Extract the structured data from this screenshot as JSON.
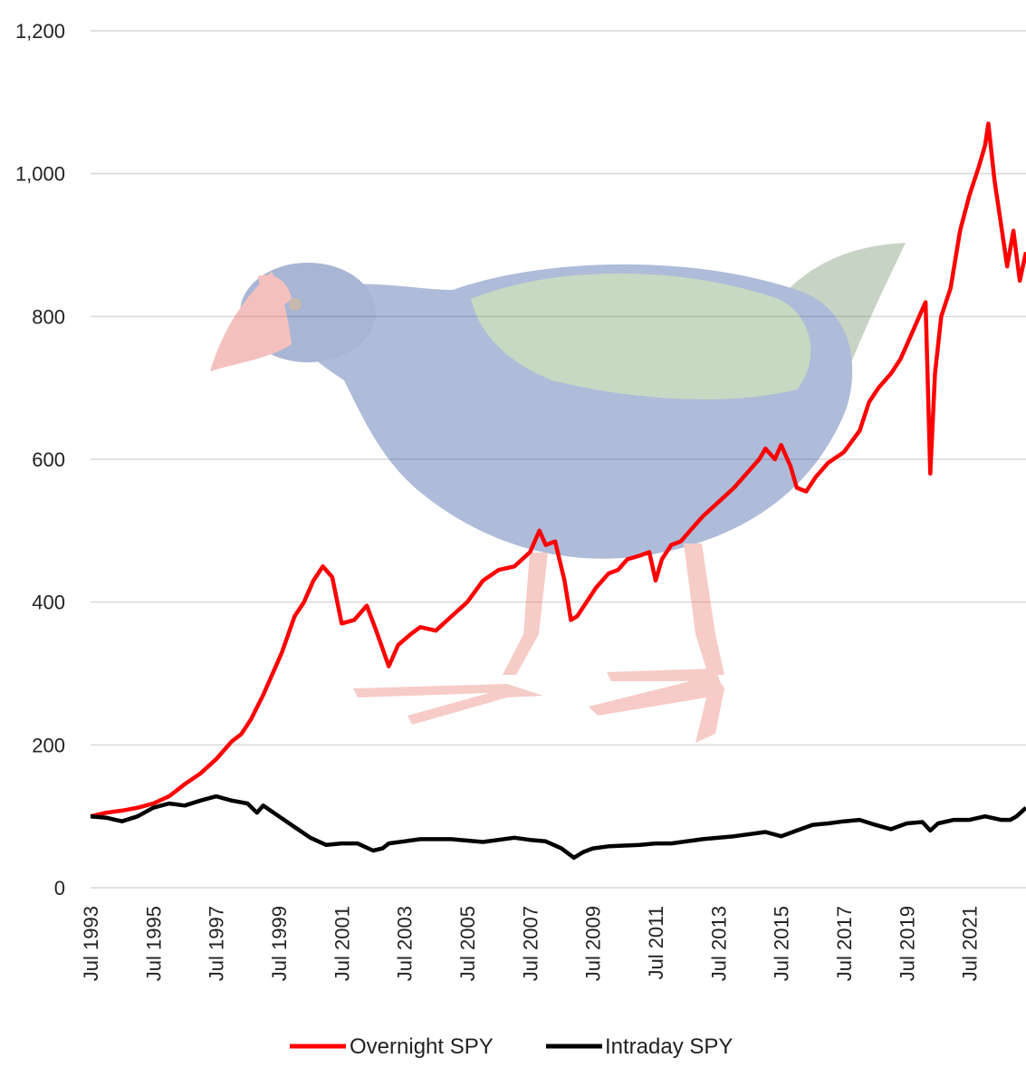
{
  "chart_data": {
    "type": "line",
    "title": "",
    "xlabel": "",
    "ylabel": "",
    "xlim": [
      1993.5,
      2023.3
    ],
    "ylim": [
      0,
      1200
    ],
    "grid": true,
    "legend_position": "bottom",
    "y_ticks": [
      "0",
      "200",
      "400",
      "600",
      "800",
      "1,000",
      "1,200"
    ],
    "x_ticks": [
      "Jul 1993",
      "Jul 1995",
      "Jul 1997",
      "Jul 1999",
      "Jul 2001",
      "Jul 2003",
      "Jul 2005",
      "Jul 2007",
      "Jul 2009",
      "Jul 2011",
      "Jul 2013",
      "Jul 2015",
      "Jul 2017",
      "Jul 2019",
      "Jul 2021"
    ],
    "x_tick_years": [
      1993.5,
      1995.5,
      1997.5,
      1999.5,
      2001.5,
      2003.5,
      2005.5,
      2007.5,
      2009.5,
      2011.5,
      2013.5,
      2015.5,
      2017.5,
      2019.5,
      2021.5
    ],
    "background_image": "takahe-bird-illustration",
    "series": [
      {
        "name": "Overnight SPY",
        "color": "#ff0000",
        "x": [
          1993.5,
          1994.0,
          1994.5,
          1995.0,
          1995.5,
          1996.0,
          1996.5,
          1997.0,
          1997.5,
          1998.0,
          1998.3,
          1998.6,
          1999.0,
          1999.3,
          1999.6,
          2000.0,
          2000.3,
          2000.6,
          2000.9,
          2001.2,
          2001.5,
          2001.9,
          2002.3,
          2002.6,
          2002.8,
          2003.0,
          2003.3,
          2003.7,
          2004.0,
          2004.5,
          2005.0,
          2005.5,
          2006.0,
          2006.5,
          2007.0,
          2007.5,
          2007.8,
          2008.0,
          2008.3,
          2008.6,
          2008.8,
          2009.0,
          2009.3,
          2009.6,
          2010.0,
          2010.3,
          2010.6,
          2011.0,
          2011.3,
          2011.5,
          2011.7,
          2012.0,
          2012.3,
          2012.6,
          2013.0,
          2013.5,
          2014.0,
          2014.5,
          2014.8,
          2015.0,
          2015.3,
          2015.5,
          2015.8,
          2016.0,
          2016.3,
          2016.6,
          2017.0,
          2017.5,
          2018.0,
          2018.3,
          2018.6,
          2019.0,
          2019.3,
          2019.5,
          2019.9,
          2020.1,
          2020.25,
          2020.4,
          2020.6,
          2020.9,
          2021.2,
          2021.5,
          2021.8,
          2022.0,
          2022.1,
          2022.3,
          2022.5,
          2022.7,
          2022.9,
          2023.1,
          2023.3
        ],
        "y": [
          100,
          105,
          108,
          112,
          118,
          128,
          145,
          160,
          180,
          205,
          215,
          235,
          270,
          300,
          330,
          380,
          400,
          430,
          450,
          435,
          370,
          375,
          395,
          360,
          335,
          310,
          340,
          355,
          365,
          360,
          380,
          400,
          430,
          445,
          450,
          470,
          500,
          480,
          485,
          430,
          375,
          380,
          400,
          420,
          440,
          445,
          460,
          465,
          470,
          430,
          460,
          480,
          485,
          500,
          520,
          540,
          560,
          585,
          600,
          615,
          600,
          620,
          590,
          560,
          555,
          575,
          595,
          610,
          640,
          680,
          700,
          720,
          740,
          760,
          800,
          820,
          580,
          720,
          800,
          840,
          920,
          970,
          1010,
          1040,
          1070,
          990,
          930,
          870,
          920,
          850,
          890
        ]
      },
      {
        "name": "Intraday SPY",
        "color": "#000000",
        "x": [
          1993.5,
          1994.0,
          1994.5,
          1995.0,
          1995.5,
          1996.0,
          1996.5,
          1997.0,
          1997.5,
          1998.0,
          1998.5,
          1998.8,
          1999.0,
          1999.5,
          2000.0,
          2000.5,
          2001.0,
          2001.5,
          2002.0,
          2002.5,
          2002.8,
          2003.0,
          2003.5,
          2004.0,
          2005.0,
          2006.0,
          2007.0,
          2007.5,
          2008.0,
          2008.5,
          2008.9,
          2009.2,
          2009.5,
          2010.0,
          2011.0,
          2011.5,
          2012.0,
          2013.0,
          2014.0,
          2015.0,
          2015.5,
          2016.0,
          2016.5,
          2017.0,
          2017.5,
          2018.0,
          2018.5,
          2019.0,
          2019.5,
          2020.0,
          2020.25,
          2020.5,
          2021.0,
          2021.5,
          2022.0,
          2022.5,
          2022.8,
          2023.0,
          2023.3
        ],
        "y": [
          100,
          98,
          93,
          100,
          112,
          118,
          115,
          122,
          128,
          122,
          118,
          105,
          115,
          100,
          85,
          70,
          60,
          62,
          62,
          52,
          55,
          62,
          65,
          68,
          68,
          64,
          70,
          67,
          65,
          55,
          42,
          50,
          55,
          58,
          60,
          62,
          62,
          68,
          72,
          78,
          72,
          80,
          88,
          90,
          93,
          95,
          88,
          82,
          90,
          92,
          80,
          90,
          95,
          95,
          100,
          95,
          95,
          100,
          112
        ]
      }
    ]
  }
}
